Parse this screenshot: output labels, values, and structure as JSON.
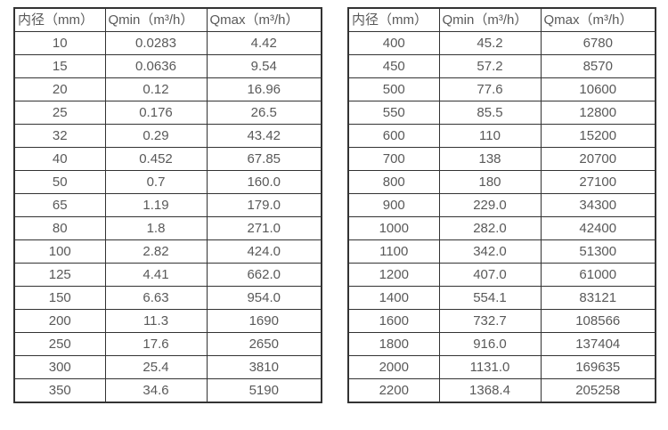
{
  "page": {
    "background": "#ffffff"
  },
  "colors": {
    "border": "#333333",
    "text": "#595959"
  },
  "tables": [
    {
      "name": "flow-table-small-diameters",
      "headers": [
        "内径（mm）",
        "Qmin（m³/h）",
        "Qmax（m³/h）"
      ],
      "rows": [
        [
          "10",
          "0.0283",
          "4.42"
        ],
        [
          "15",
          "0.0636",
          "9.54"
        ],
        [
          "20",
          "0.12",
          "16.96"
        ],
        [
          "25",
          "0.176",
          "26.5"
        ],
        [
          "32",
          "0.29",
          "43.42"
        ],
        [
          "40",
          "0.452",
          "67.85"
        ],
        [
          "50",
          "0.7",
          "160.0"
        ],
        [
          "65",
          "1.19",
          "179.0"
        ],
        [
          "80",
          "1.8",
          "271.0"
        ],
        [
          "100",
          "2.82",
          "424.0"
        ],
        [
          "125",
          "4.41",
          "662.0"
        ],
        [
          "150",
          "6.63",
          "954.0"
        ],
        [
          "200",
          "11.3",
          "1690"
        ],
        [
          "250",
          "17.6",
          "2650"
        ],
        [
          "300",
          "25.4",
          "3810"
        ],
        [
          "350",
          "34.6",
          "5190"
        ]
      ]
    },
    {
      "name": "flow-table-large-diameters",
      "headers": [
        "内径（mm）",
        "Qmin（m³/h）",
        "Qmax（m³/h）"
      ],
      "rows": [
        [
          "400",
          "45.2",
          "6780"
        ],
        [
          "450",
          "57.2",
          "8570"
        ],
        [
          "500",
          "77.6",
          "10600"
        ],
        [
          "550",
          "85.5",
          "12800"
        ],
        [
          "600",
          "110",
          "15200"
        ],
        [
          "700",
          "138",
          "20700"
        ],
        [
          "800",
          "180",
          "27100"
        ],
        [
          "900",
          "229.0",
          "34300"
        ],
        [
          "1000",
          "282.0",
          "42400"
        ],
        [
          "1100",
          "342.0",
          "51300"
        ],
        [
          "1200",
          "407.0",
          "61000"
        ],
        [
          "1400",
          "554.1",
          "83121"
        ],
        [
          "1600",
          "732.7",
          "108566"
        ],
        [
          "1800",
          "916.0",
          "137404"
        ],
        [
          "2000",
          "1131.0",
          "169635"
        ],
        [
          "2200",
          "1368.4",
          "205258"
        ]
      ]
    }
  ]
}
